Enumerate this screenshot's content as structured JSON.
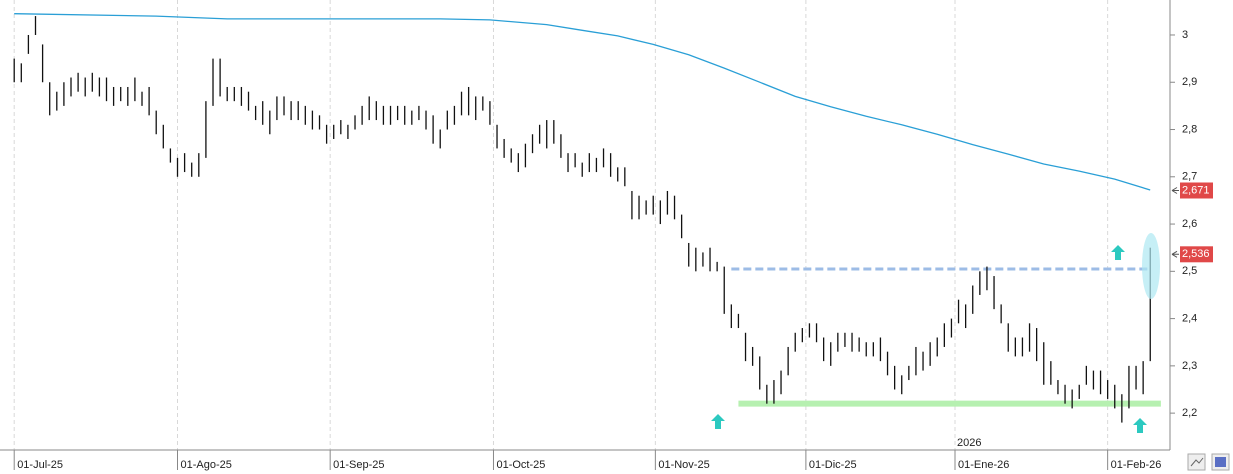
{
  "chart_data": {
    "type": "ohlc",
    "xlim": [
      -2,
      162.5
    ],
    "ylim": [
      2.122,
      3.074
    ],
    "yticks": [
      {
        "value": 2.2,
        "label": "2,2"
      },
      {
        "value": 2.3,
        "label": "2,3"
      },
      {
        "value": 2.4,
        "label": "2,4"
      },
      {
        "value": 2.5,
        "label": "2,5"
      },
      {
        "value": 2.6,
        "label": "2,6"
      },
      {
        "value": 2.7,
        "label": "2,7"
      },
      {
        "value": 2.8,
        "label": "2,8"
      },
      {
        "value": 2.9,
        "label": "2,9"
      },
      3
    ],
    "xticks": [
      {
        "value": 0,
        "label": "01-Jul-25"
      },
      {
        "value": 23,
        "label": "01-Ago-25"
      },
      {
        "value": 44.5,
        "label": "01-Sep-25"
      },
      {
        "value": 67.5,
        "label": "01-Oct-25"
      },
      {
        "value": 90.3,
        "label": "01-Nov-25"
      },
      {
        "value": 111.5,
        "label": "01-Dic-25"
      },
      {
        "value": 132.5,
        "label": "01-Ene-26"
      },
      {
        "value": 154,
        "label": "01-Feb-26"
      }
    ],
    "year_label": {
      "value": 132.5,
      "label": "2026"
    },
    "grid": true,
    "bar_color": "#111111",
    "high": [
      2.95,
      2.94,
      3.0,
      3.04,
      2.98,
      2.9,
      2.88,
      2.9,
      2.91,
      2.92,
      2.91,
      2.92,
      2.91,
      2.91,
      2.89,
      2.89,
      2.89,
      2.91,
      2.88,
      2.89,
      2.84,
      2.81,
      2.76,
      2.74,
      2.75,
      2.73,
      2.75,
      2.86,
      2.95,
      2.95,
      2.89,
      2.89,
      2.89,
      2.88,
      2.85,
      2.86,
      2.84,
      2.87,
      2.87,
      2.86,
      2.86,
      2.85,
      2.84,
      2.83,
      2.81,
      2.81,
      2.82,
      2.81,
      2.83,
      2.85,
      2.87,
      2.86,
      2.85,
      2.85,
      2.85,
      2.85,
      2.84,
      2.85,
      2.84,
      2.83,
      2.8,
      2.84,
      2.85,
      2.88,
      2.89,
      2.87,
      2.87,
      2.86,
      2.81,
      2.78,
      2.76,
      2.75,
      2.77,
      2.79,
      2.81,
      2.82,
      2.82,
      2.79,
      2.75,
      2.75,
      2.73,
      2.75,
      2.74,
      2.76,
      2.75,
      2.72,
      2.72,
      2.67,
      2.66,
      2.65,
      2.66,
      2.65,
      2.67,
      2.66,
      2.62,
      2.56,
      2.55,
      2.54,
      2.55,
      2.52,
      2.51,
      2.43,
      2.41,
      2.37,
      2.34,
      2.32,
      2.26,
      2.27,
      2.29,
      2.34,
      2.37,
      2.38,
      2.39,
      2.39,
      2.36,
      2.35,
      2.37,
      2.37,
      2.37,
      2.36,
      2.35,
      2.35,
      2.36,
      2.33,
      2.3,
      2.28,
      2.3,
      2.34,
      2.33,
      2.35,
      2.36,
      2.39,
      2.4,
      2.44,
      2.43,
      2.47,
      2.5,
      2.51,
      2.49,
      2.43,
      2.39,
      2.36,
      2.36,
      2.39,
      2.38,
      2.35,
      2.31,
      2.27,
      2.26,
      2.25,
      2.26,
      2.3,
      2.29,
      2.29,
      2.27,
      2.26,
      2.24,
      2.3,
      2.3,
      2.31,
      2.55
    ],
    "low": [
      2.9,
      2.9,
      2.96,
      3.0,
      2.9,
      2.83,
      2.84,
      2.85,
      2.87,
      2.88,
      2.87,
      2.88,
      2.87,
      2.86,
      2.85,
      2.86,
      2.85,
      2.86,
      2.85,
      2.83,
      2.79,
      2.76,
      2.73,
      2.7,
      2.71,
      2.7,
      2.7,
      2.74,
      2.85,
      2.87,
      2.86,
      2.86,
      2.85,
      2.84,
      2.82,
      2.81,
      2.79,
      2.82,
      2.83,
      2.82,
      2.82,
      2.81,
      2.8,
      2.8,
      2.77,
      2.78,
      2.79,
      2.78,
      2.8,
      2.81,
      2.82,
      2.82,
      2.81,
      2.81,
      2.82,
      2.81,
      2.81,
      2.82,
      2.8,
      2.77,
      2.76,
      2.8,
      2.81,
      2.83,
      2.83,
      2.82,
      2.84,
      2.81,
      2.76,
      2.74,
      2.73,
      2.71,
      2.72,
      2.75,
      2.77,
      2.76,
      2.77,
      2.74,
      2.71,
      2.72,
      2.7,
      2.71,
      2.71,
      2.72,
      2.7,
      2.69,
      2.68,
      2.61,
      2.61,
      2.62,
      2.62,
      2.6,
      2.62,
      2.61,
      2.57,
      2.51,
      2.5,
      2.51,
      2.5,
      2.5,
      2.41,
      2.38,
      2.38,
      2.31,
      2.3,
      2.25,
      2.22,
      2.22,
      2.24,
      2.28,
      2.33,
      2.35,
      2.36,
      2.35,
      2.31,
      2.3,
      2.33,
      2.34,
      2.33,
      2.33,
      2.32,
      2.32,
      2.31,
      2.28,
      2.25,
      2.24,
      2.27,
      2.28,
      2.29,
      2.3,
      2.32,
      2.34,
      2.36,
      2.39,
      2.38,
      2.41,
      2.45,
      2.46,
      2.42,
      2.39,
      2.33,
      2.32,
      2.32,
      2.33,
      2.31,
      2.26,
      2.26,
      2.24,
      2.22,
      2.21,
      2.23,
      2.26,
      2.25,
      2.24,
      2.23,
      2.21,
      2.18,
      2.21,
      2.25,
      2.24,
      2.31
    ],
    "moving_average": {
      "color": "#2a9fd6",
      "x": [
        0,
        20,
        30,
        60,
        67,
        75,
        80,
        85,
        90,
        95,
        100,
        105,
        110,
        115,
        120,
        125,
        130,
        135,
        140,
        145,
        150,
        155,
        160
      ],
      "values": [
        3.045,
        3.04,
        3.034,
        3.034,
        3.032,
        3.022,
        3.01,
        2.998,
        2.98,
        2.958,
        2.93,
        2.9,
        2.87,
        2.848,
        2.828,
        2.81,
        2.79,
        2.768,
        2.748,
        2.727,
        2.712,
        2.695,
        2.672
      ]
    },
    "levels": [
      {
        "name": "resistance",
        "color": "#9dbce6",
        "dash": true,
        "y": 2.505,
        "x": [
          101,
          160
        ]
      },
      {
        "name": "support",
        "color": "#b6f0b0",
        "dash": false,
        "y": 2.22,
        "x": [
          102,
          161.5
        ]
      }
    ],
    "price_labels": [
      {
        "value": 2.671,
        "label": "2,671"
      },
      {
        "value": 2.536,
        "label": "2,536"
      }
    ],
    "price_label_color": "#e04848"
  }
}
